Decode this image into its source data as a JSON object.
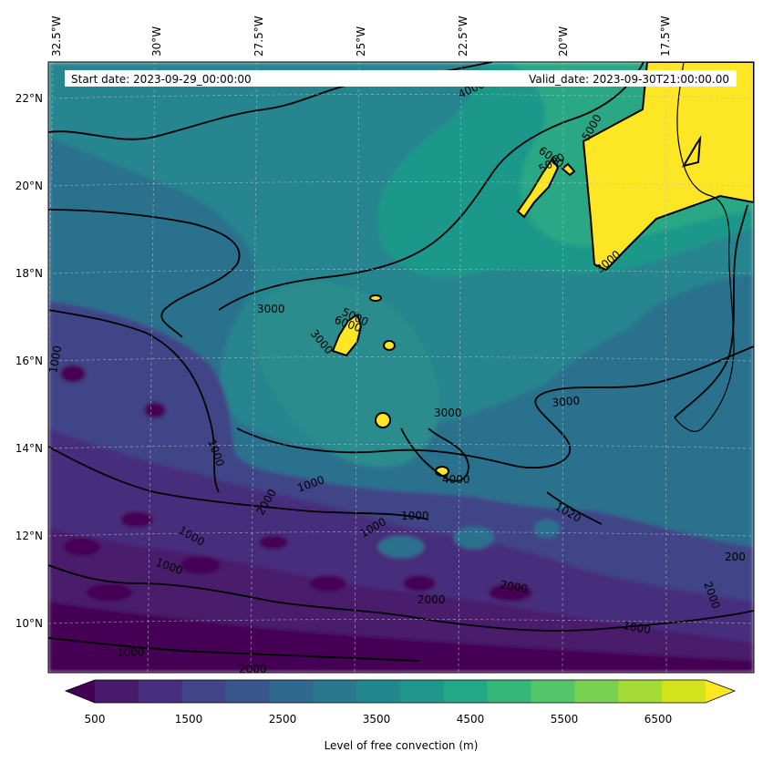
{
  "header": {
    "start_date": "Start date: 2023-09-29_00:00:00",
    "valid_date": "Valid_date: 2023-09-30T21:00:00.00"
  },
  "map": {
    "lon_labels": [
      "32.5°W",
      "30°W",
      "27.5°W",
      "25°W",
      "22.5°W",
      "20°W",
      "17.5°W"
    ],
    "lat_labels": [
      "22°N",
      "20°N",
      "18°N",
      "16°N",
      "14°N",
      "12°N",
      "10°N"
    ],
    "contour_labels": [
      "1000",
      "1000",
      "1000",
      "1000",
      "1000",
      "1000",
      "1000",
      "1000",
      "1020",
      "1000",
      "2000",
      "2000",
      "2000",
      "2000",
      "2000",
      "3000",
      "3000",
      "3000",
      "3000",
      "3000",
      "4000",
      "4000",
      "5000",
      "5000",
      "5000",
      "6000",
      "6000",
      "200"
    ]
  },
  "colorbar": {
    "label": "Level of free convection (m)",
    "ticks": [
      "500",
      "1500",
      "2500",
      "3500",
      "4500",
      "5500",
      "6500"
    ],
    "colors": [
      "#440154",
      "#481a6c",
      "#472f7d",
      "#414487",
      "#39568c",
      "#31688e",
      "#2a788e",
      "#23888e",
      "#1f988b",
      "#22a884",
      "#35b779",
      "#54c568",
      "#7ad151",
      "#a5db36",
      "#d2e21b",
      "#fde725"
    ]
  }
}
